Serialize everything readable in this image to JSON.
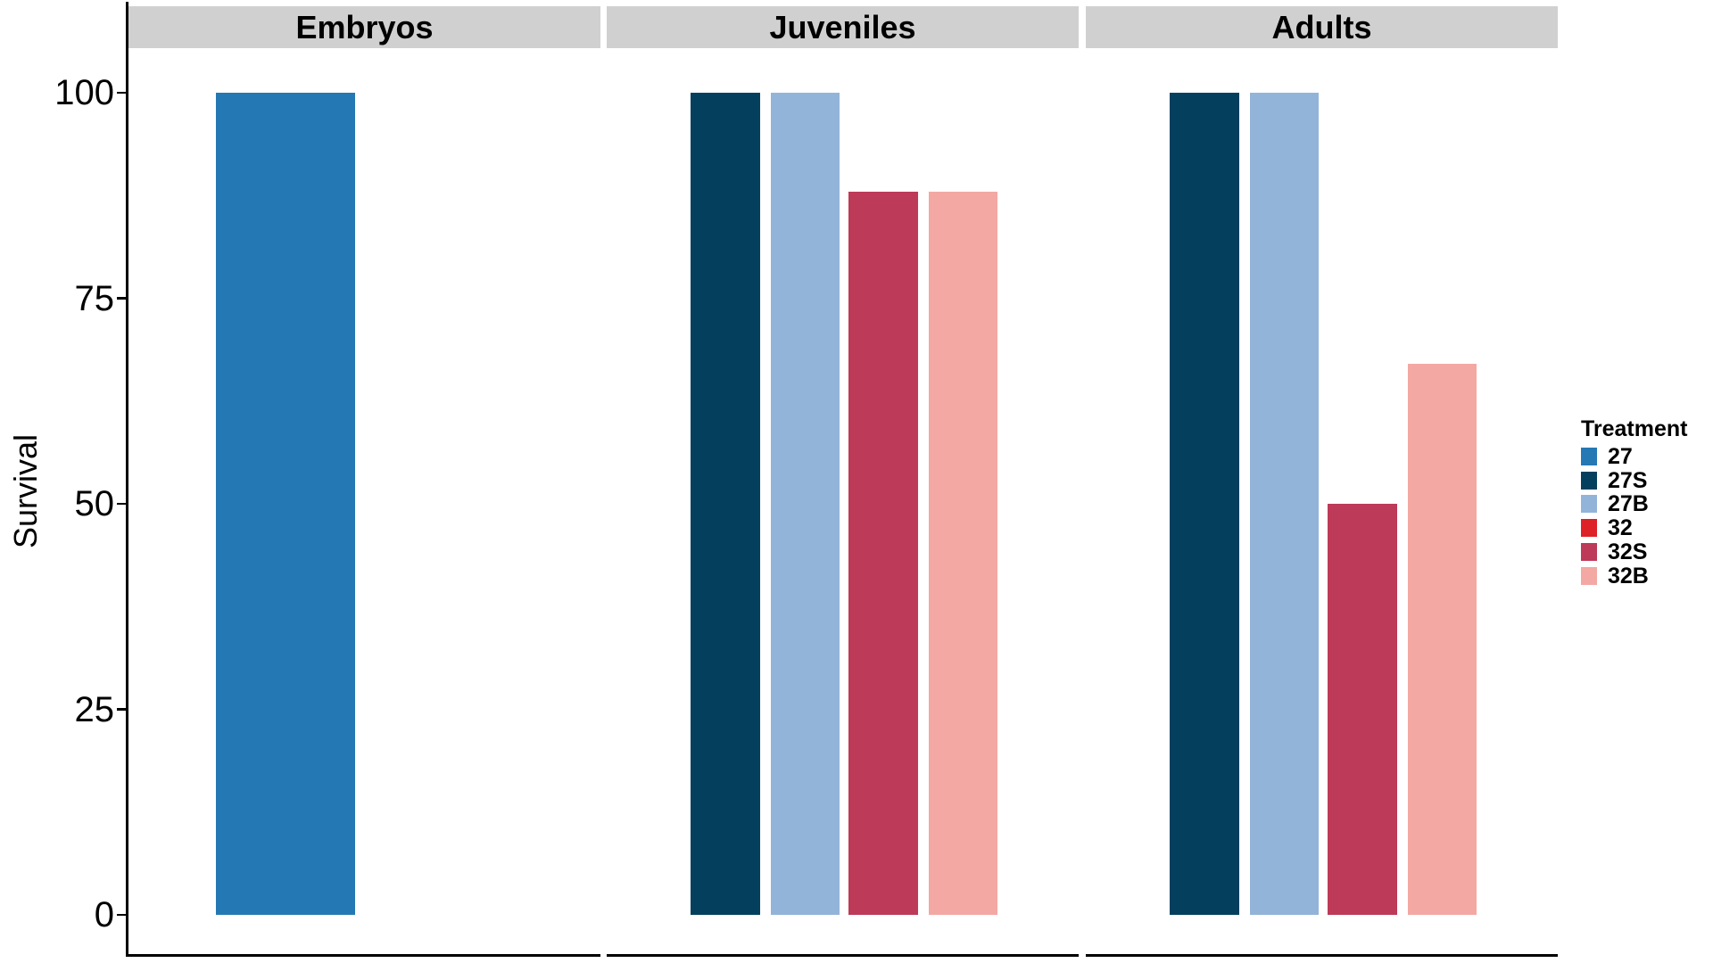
{
  "chart_data": {
    "type": "bar",
    "title": "",
    "ylabel": "Survival",
    "xlabel": "",
    "ylim": [
      0,
      100
    ],
    "yticks": [
      0,
      25,
      50,
      75,
      100
    ],
    "grid": "off",
    "legend_position": "right",
    "legend": {
      "title": "Treatment",
      "entries": [
        {
          "label": "27",
          "color": "#2478B4"
        },
        {
          "label": "27S",
          "color": "#04405E"
        },
        {
          "label": "27B",
          "color": "#92B4D9"
        },
        {
          "label": "32",
          "color": "#DD2127"
        },
        {
          "label": "32S",
          "color": "#BD3A58"
        },
        {
          "label": "32B",
          "color": "#F3A8A3"
        }
      ]
    },
    "facets": [
      {
        "label": "Embryos",
        "series": [
          {
            "treatment": "27",
            "value": 100
          }
        ]
      },
      {
        "label": "Juveniles",
        "series": [
          {
            "treatment": "27S",
            "value": 100
          },
          {
            "treatment": "27B",
            "value": 100
          },
          {
            "treatment": "32S",
            "value": 88
          },
          {
            "treatment": "32B",
            "value": 88
          }
        ]
      },
      {
        "label": "Adults",
        "series": [
          {
            "treatment": "27S",
            "value": 100
          },
          {
            "treatment": "27B",
            "value": 100
          },
          {
            "treatment": "32S",
            "value": 50
          },
          {
            "treatment": "32B",
            "value": 67
          }
        ]
      }
    ],
    "colors": {
      "strip_background": "#D0D0D0",
      "axis": "#000000",
      "background": "#FFFFFF"
    }
  }
}
